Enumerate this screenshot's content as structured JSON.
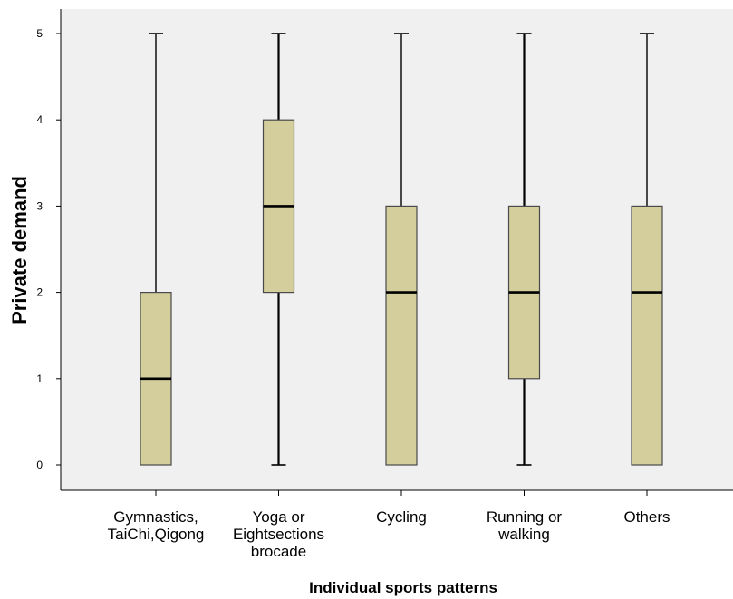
{
  "chart_data": {
    "type": "box",
    "xlabel": "Individual sports patterns",
    "ylabel": "Private demand",
    "ylim": [
      0,
      5
    ],
    "yticks": [
      "0",
      "1",
      "2",
      "3",
      "4",
      "5"
    ],
    "grid": false,
    "colors": {
      "plot_background": "#f0f0f0",
      "box_fill": "#d3ce9b",
      "box_stroke": "#4a4a4a",
      "median": "#000000"
    },
    "categories": [
      [
        "Gymnastics,",
        "TaiChi,Qigong"
      ],
      [
        "Yoga or",
        "Eightsections",
        "brocade"
      ],
      [
        "Cycling"
      ],
      [
        "Running or",
        "walking"
      ],
      [
        "Others"
      ]
    ],
    "boxes": [
      {
        "min": 0,
        "q1": 0,
        "median": 1,
        "q3": 2,
        "max": 5
      },
      {
        "min": 0,
        "q1": 2,
        "median": 3,
        "q3": 4,
        "max": 5
      },
      {
        "min": 0,
        "q1": 0,
        "median": 2,
        "q3": 3,
        "max": 5
      },
      {
        "min": 0,
        "q1": 1,
        "median": 2,
        "q3": 3,
        "max": 5
      },
      {
        "min": 0,
        "q1": 0,
        "median": 2,
        "q3": 3,
        "max": 5
      }
    ]
  }
}
